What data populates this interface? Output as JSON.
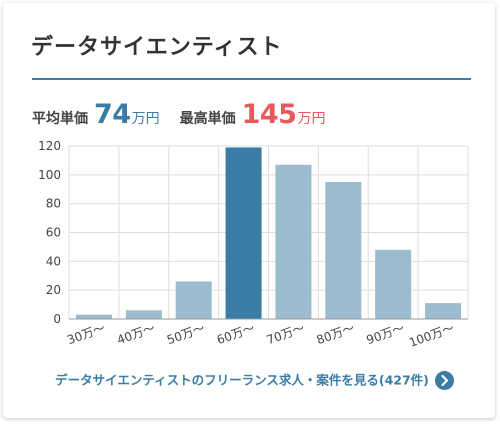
{
  "card": {
    "title": "データサイエンティスト"
  },
  "prices": {
    "avg_label": "平均単価",
    "avg_value": "74",
    "avg_unit": "万円",
    "max_label": "最高単価",
    "max_value": "145",
    "max_unit": "万円"
  },
  "colors": {
    "accent": "#3a7ca5",
    "bar": "#9bbbcf",
    "bar_highlight": "#3a7ca5",
    "max_price": "#e8585c"
  },
  "chart_data": {
    "type": "bar",
    "categories": [
      "30万〜",
      "40万〜",
      "50万〜",
      "60万〜",
      "70万〜",
      "80万〜",
      "90万〜",
      "100万〜"
    ],
    "values": [
      3,
      6,
      26,
      119,
      107,
      95,
      48,
      11
    ],
    "highlight_index": 3,
    "yticks": [
      0,
      20,
      40,
      60,
      80,
      100,
      120
    ],
    "ylim": [
      0,
      120
    ],
    "grid": true,
    "xlabel": "",
    "ylabel": ""
  },
  "footer": {
    "link_text": "データサイエンティストのフリーランス求人・案件を見る(427件)",
    "icon": "chevron-right-circle-icon"
  }
}
